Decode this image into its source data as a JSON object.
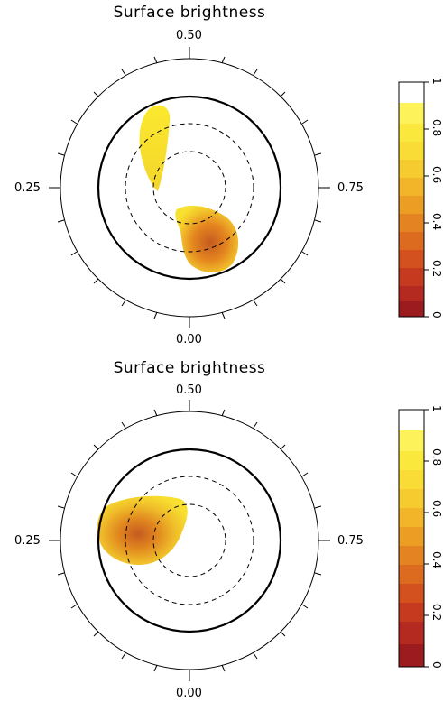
{
  "panels": [
    {
      "title": "Surface brightness",
      "phase_labels": {
        "top": "0.50",
        "left": "0.25",
        "right": "0.75",
        "bottom": "0.00"
      },
      "colorbar_ticks": [
        "0",
        "0.2",
        "0.4",
        "0.6",
        "0.8",
        "1"
      ]
    },
    {
      "title": "Surface brightness",
      "phase_labels": {
        "top": "0.50",
        "left": "0.25",
        "right": "0.75",
        "bottom": "0.00"
      },
      "colorbar_ticks": [
        "0",
        "0.2",
        "0.4",
        "0.6",
        "0.8",
        "1"
      ]
    }
  ],
  "colorbar_colors": [
    "#9b1b1e",
    "#b42a20",
    "#c63a1f",
    "#d2511f",
    "#dc6a1f",
    "#e48322",
    "#ec9d24",
    "#f2b52a",
    "#f6cb2f",
    "#f9dc35",
    "#fbe83c",
    "#fdf25a",
    "#ffffff"
  ],
  "colors": {
    "spot_outer": "#f5e225",
    "spot_mid": "#eaa323",
    "spot_core": "#c55a20"
  }
}
